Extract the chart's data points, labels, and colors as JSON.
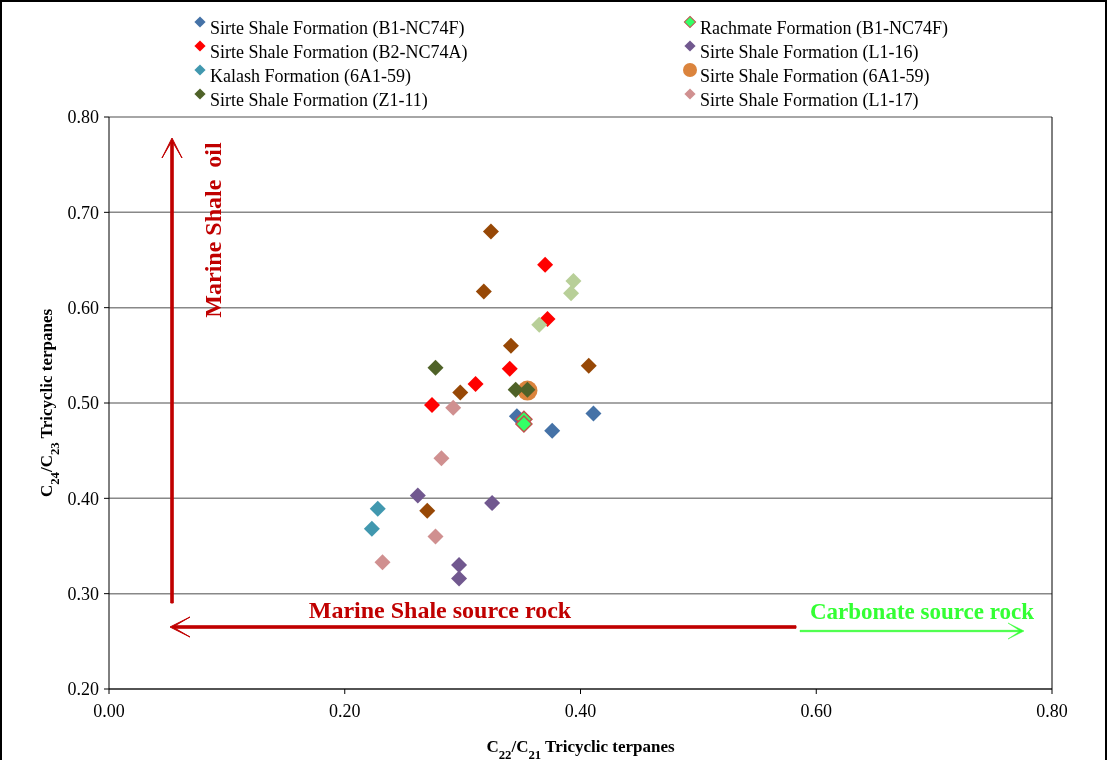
{
  "chart_data": {
    "type": "scatter",
    "xlabel": "C$_{22}$/C$_{21}$ Tricyclic terpanes",
    "ylabel": "C$_{24}$/C$_{23}$ Tricyclic terpanes",
    "xlim": [
      0,
      0.8
    ],
    "xticks": [
      {
        "value": 0,
        "label": "0.00"
      },
      {
        "value": 0.2,
        "label": "0.20"
      },
      {
        "value": 0.4,
        "label": "0.40"
      },
      {
        "value": 0.6,
        "label": "0.60"
      },
      {
        "value": 0.8,
        "label": "0.80"
      }
    ],
    "ylim": [
      0.2,
      0.8
    ],
    "yticks": [
      {
        "value": 0.2,
        "label": "0.20"
      },
      {
        "value": 0.3,
        "label": "0.30"
      },
      {
        "value": 0.4,
        "label": "0.40"
      },
      {
        "value": 0.5,
        "label": "0.50"
      },
      {
        "value": 0.6,
        "label": "0.60"
      },
      {
        "value": 0.7,
        "label": "0.70"
      },
      {
        "value": 0.8,
        "label": "0.80"
      }
    ],
    "grid": "y",
    "legend": "top",
    "marker": "diamond",
    "annotations": [
      "Marine Shale  oil",
      "Marine Shale source rock",
      "Carbonate source rock"
    ],
    "series": [
      {
        "name": "Sirte Shale Formation (B1-NC74F)",
        "color": "#4572a7",
        "x": [
          0.346,
          0.376,
          0.411
        ],
        "values": [
          0.486,
          0.471,
          0.489
        ]
      },
      {
        "name": "Rachmate Formation (B1-NC74F)",
        "color": "#33ff66",
        "x": [
          0.352,
          0.352
        ],
        "values": [
          0.483,
          0.478
        ]
      },
      {
        "name": "Sirte Shale Formation (B2-NC74A)",
        "color": "#ff0000",
        "x": [
          0.37,
          0.372,
          0.34,
          0.311,
          0.274
        ],
        "values": [
          0.645,
          0.588,
          0.536,
          0.52,
          0.498
        ]
      },
      {
        "name": "Sirte Shale Formation (L1-16)",
        "color": "#71588f",
        "x": [
          0.262,
          0.325,
          0.297,
          0.297
        ],
        "values": [
          0.403,
          0.395,
          0.33,
          0.316
        ]
      },
      {
        "name": "Kalash Formation (6A1-59)",
        "color": "#4198af",
        "x": [
          0.228,
          0.223
        ],
        "values": [
          0.389,
          0.368
        ]
      },
      {
        "name": "Sirte Shale Formation (6A1-59)",
        "color": "#db843d",
        "marker": "circle",
        "x": [
          0.355
        ],
        "values": [
          0.513
        ]
      },
      {
        "name": "Sirte Shale Formation (Z1-11)",
        "color": "#4f6228",
        "x": [
          0.277,
          0.345,
          0.355
        ],
        "values": [
          0.537,
          0.514,
          0.514
        ]
      },
      {
        "name": "Sirte Shale Formation (L1-17)",
        "color": "#d09090",
        "x": [
          0.292,
          0.282,
          0.277,
          0.232
        ],
        "values": [
          0.495,
          0.442,
          0.36,
          0.333
        ]
      },
      {
        "color": "#974806",
        "x": [
          0.324,
          0.318,
          0.341,
          0.407,
          0.298,
          0.27
        ],
        "values": [
          0.68,
          0.617,
          0.56,
          0.539,
          0.511,
          0.387
        ]
      },
      {
        "color": "#b8cf98",
        "x": [
          0.394,
          0.392,
          0.365
        ],
        "values": [
          0.628,
          0.615,
          0.582
        ]
      }
    ]
  }
}
